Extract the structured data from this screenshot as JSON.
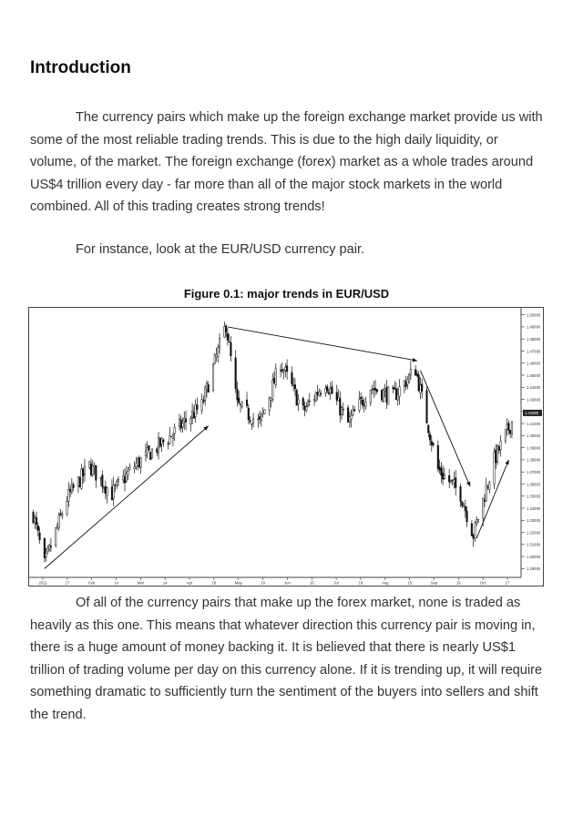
{
  "heading": "Introduction",
  "paragraphs": [
    "The currency pairs which make up the foreign exchange market provide us with some of the most reliable trading trends. This is due to the high daily liquidity, or volume, of the market. The foreign exchange (forex) market as a whole trades around US$4 trillion every day - far more than all of the major stock markets in the world combined. All of this trading creates strong trends!",
    "For instance, look at the EUR/USD currency pair.",
    "Of all of the currency pairs that make up the forex market, none is traded as heavily as this one. This means that whatever direction this currency pair is moving in, there is a huge amount of money backing it. It is believed that there is nearly US$1 trillion of trading volume per day on this currency alone. If it is trending up, it will require something dramatic to sufficiently turn the sentiment of the buyers into sellers and shift the trend."
  ],
  "figure": {
    "caption": "Figure 0.1: major trends in EUR/USD"
  },
  "chart_data": {
    "type": "candlestick",
    "title": "",
    "x_ticks": [
      "2011",
      "17",
      "Feb",
      "14",
      "Mar",
      "14",
      "Apr",
      "18",
      "May",
      "16",
      "Jun",
      "16",
      "Jul",
      "18",
      "Aug",
      "15",
      "Sep",
      "19",
      "Oct",
      "17"
    ],
    "y_ticks": [
      "1.50000",
      "1.49000",
      "1.48000",
      "1.47000",
      "1.46000",
      "1.45000",
      "1.44000",
      "1.43000",
      "1.42000",
      "1.41000",
      "1.40000",
      "1.39000",
      "1.38000",
      "1.37000",
      "1.36000",
      "1.35000",
      "1.34000",
      "1.33000",
      "1.32000",
      "1.31000",
      "1.30000",
      "1.29000"
    ],
    "ylim": [
      1.285,
      1.505
    ],
    "last_price": "1.41880",
    "trend_lines": [
      {
        "from": [
          "2011-01-10",
          1.29
        ],
        "to": [
          "2011-04-22",
          1.408
        ]
      },
      {
        "from": [
          "2011-05-04",
          1.49
        ],
        "to": [
          "2011-08-30",
          1.462
        ]
      },
      {
        "from": [
          "2011-09-01",
          1.454
        ],
        "to": [
          "2011-10-02",
          1.358
        ]
      },
      {
        "from": [
          "2011-10-06",
          1.315
        ],
        "to": [
          "2011-10-26",
          1.38
        ]
      }
    ],
    "anchor_closes": [
      {
        "x": "2011-01-03",
        "y": 1.335
      },
      {
        "x": "2011-01-10",
        "y": 1.293
      },
      {
        "x": "2011-01-24",
        "y": 1.348
      },
      {
        "x": "2011-02-07",
        "y": 1.375
      },
      {
        "x": "2011-02-21",
        "y": 1.352
      },
      {
        "x": "2011-03-07",
        "y": 1.375
      },
      {
        "x": "2011-03-28",
        "y": 1.398
      },
      {
        "x": "2011-04-18",
        "y": 1.425
      },
      {
        "x": "2011-05-03",
        "y": 1.492
      },
      {
        "x": "2011-05-10",
        "y": 1.425
      },
      {
        "x": "2011-05-24",
        "y": 1.41
      },
      {
        "x": "2011-06-06",
        "y": 1.46
      },
      {
        "x": "2011-06-20",
        "y": 1.42
      },
      {
        "x": "2011-07-04",
        "y": 1.445
      },
      {
        "x": "2011-07-18",
        "y": 1.41
      },
      {
        "x": "2011-08-01",
        "y": 1.44
      },
      {
        "x": "2011-08-15",
        "y": 1.432
      },
      {
        "x": "2011-08-29",
        "y": 1.455
      },
      {
        "x": "2011-09-12",
        "y": 1.372
      },
      {
        "x": "2011-09-26",
        "y": 1.352
      },
      {
        "x": "2011-10-04",
        "y": 1.318
      },
      {
        "x": "2011-10-17",
        "y": 1.38
      },
      {
        "x": "2011-10-31",
        "y": 1.42
      }
    ]
  },
  "colors": {
    "candle": "#111111",
    "axis": "#333333",
    "price_tag_bg": "#222222",
    "price_tag_text": "#ffffff"
  }
}
